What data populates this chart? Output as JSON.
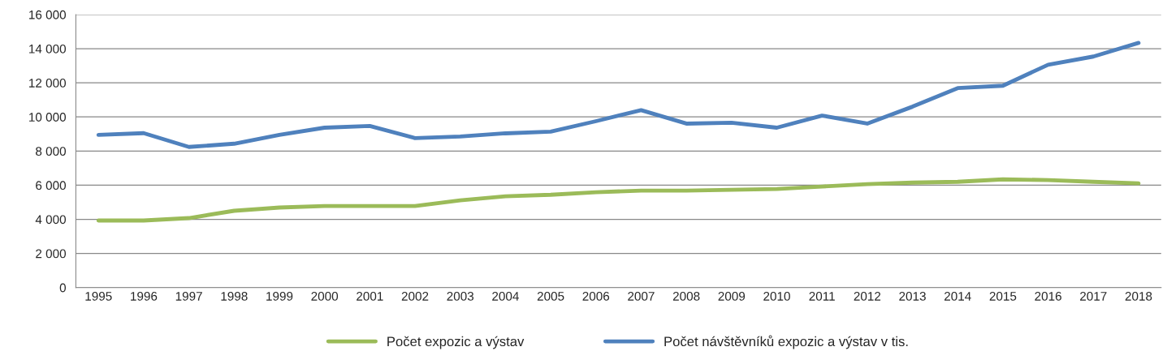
{
  "chart_data": {
    "type": "line",
    "categories": [
      "1995",
      "1996",
      "1997",
      "1998",
      "1999",
      "2000",
      "2001",
      "2002",
      "2003",
      "2004",
      "2005",
      "2006",
      "2007",
      "2008",
      "2009",
      "2010",
      "2011",
      "2012",
      "2013",
      "2014",
      "2015",
      "2016",
      "2017",
      "2018"
    ],
    "series": [
      {
        "name": "Počet expozic a výstav",
        "color": "#9bbb59",
        "values": [
          3930,
          3930,
          4070,
          4500,
          4690,
          4780,
          4780,
          4780,
          5110,
          5350,
          5440,
          5590,
          5680,
          5680,
          5730,
          5780,
          5920,
          6060,
          6150,
          6200,
          6340,
          6300,
          6200,
          6110
        ]
      },
      {
        "name": "Počet návštěvníků expozic a výstav v tis.",
        "color": "#4f81bd",
        "values": [
          8950,
          9050,
          8240,
          8430,
          8950,
          9370,
          9470,
          8760,
          8850,
          9040,
          9140,
          9750,
          10400,
          9610,
          9660,
          9370,
          10080,
          9610,
          10600,
          11690,
          11830,
          13060,
          13540,
          14340
        ]
      }
    ],
    "ylim": [
      0,
      16000
    ],
    "yticks": [
      0,
      {
        "value": 2000,
        "label": "2 000"
      },
      {
        "value": 4000,
        "label": "4 000"
      },
      {
        "value": 6000,
        "label": "6 000"
      },
      {
        "value": 8000,
        "label": "8 000"
      },
      {
        "value": 10000,
        "label": "10 000"
      },
      {
        "value": 12000,
        "label": "12 000"
      },
      {
        "value": 14000,
        "label": "14 000"
      },
      {
        "value": 16000,
        "label": "16 000"
      }
    ],
    "grid": "y",
    "legend": "bottom",
    "marker": "none",
    "line_style": "solid"
  }
}
